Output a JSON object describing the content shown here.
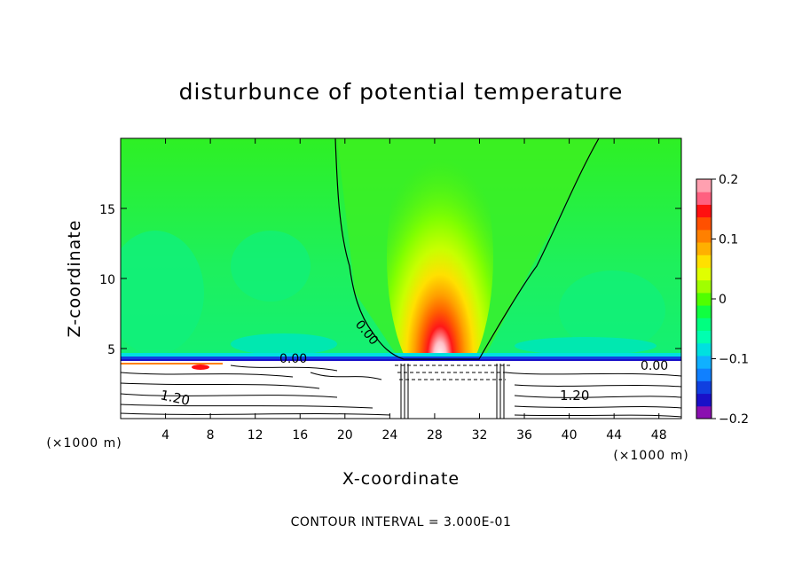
{
  "chart_data": {
    "type": "heatmap",
    "title": "disturbunce of potential temperature",
    "xlabel": "X-coordinate",
    "ylabel": "Z-coordinate",
    "x_unit": "(×1000 m)",
    "y_unit": "(×1000 m)",
    "xlim": [
      0,
      50
    ],
    "ylim": [
      0,
      20
    ],
    "x_ticks": [
      4,
      8,
      12,
      16,
      20,
      24,
      28,
      32,
      36,
      40,
      44,
      48
    ],
    "y_ticks": [
      5,
      10,
      15
    ],
    "colorbar": {
      "min": -0.2,
      "max": 0.2,
      "ticks": [
        0.2,
        0.1,
        0,
        -0.1,
        -0.2
      ],
      "tick_labels": [
        "0.2",
        "0.1",
        "0",
        "−0.1",
        "−0.2"
      ],
      "colors": [
        "#8a10b0",
        "#1a10c8",
        "#1040e0",
        "#1080ff",
        "#10b0ff",
        "#00e0e0",
        "#00ffb0",
        "#00ff80",
        "#10ff40",
        "#50ff00",
        "#a0ff00",
        "#e0ff00",
        "#ffe000",
        "#ffb000",
        "#ff8000",
        "#ff5000",
        "#ff1010",
        "#ff6080",
        "#ffa0b0"
      ]
    },
    "contour_labels": [
      {
        "text": "0.00",
        "x": 20.8,
        "z": 6.5
      },
      {
        "text": "0.00",
        "x": 15.2,
        "z": 4.3
      },
      {
        "text": "0.00",
        "x": 48.1,
        "z": 3.8
      },
      {
        "text": "1.20",
        "x": 5.0,
        "z": 1.4
      },
      {
        "text": "1.20",
        "x": 40.0,
        "z": 1.4
      }
    ],
    "features": {
      "warm_plume": {
        "x": 29.5,
        "z_top": 18,
        "peak": 0.2
      },
      "inversion_height": 4.5
    },
    "annotation": "CONTOUR INTERVAL = 3.000E-01"
  }
}
